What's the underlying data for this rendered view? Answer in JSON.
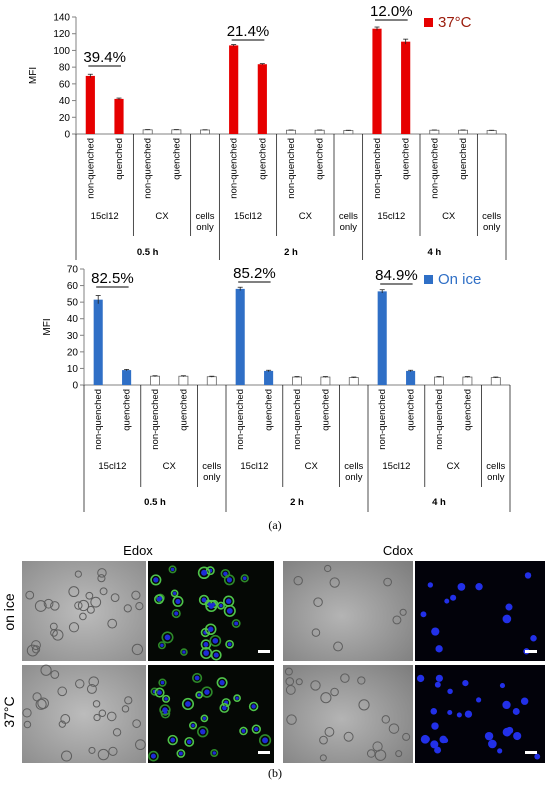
{
  "chart_data": [
    {
      "type": "bar",
      "ylabel": "MFI",
      "ylim": [
        0,
        140
      ],
      "yticks": [
        0,
        20,
        40,
        60,
        80,
        100,
        120,
        140
      ],
      "legend": {
        "label": "37°C",
        "color": "#e60000",
        "position": "top-right"
      },
      "times": [
        "0.5 h",
        "2 h",
        "4 h"
      ],
      "groups": [
        "15cl12",
        "CX",
        "cells\nonly"
      ],
      "conditions": [
        "non-quenched",
        "quenched"
      ],
      "values": [
        [
          69.5,
          42.0,
          5.0,
          5.0,
          4.8
        ],
        [
          106.0,
          83.5,
          4.5,
          4.5,
          4.2
        ],
        [
          126.0,
          110.5,
          4.5,
          4.5,
          4.2
        ]
      ],
      "errors": [
        [
          2.0,
          1.0,
          0.3,
          0.3,
          0.3
        ],
        [
          1.0,
          0.7,
          0.3,
          0.3,
          0.3
        ],
        [
          2.0,
          3.0,
          0.3,
          0.3,
          0.3
        ]
      ],
      "annotations": [
        "39.4%",
        "21.4%",
        "12.0%"
      ]
    },
    {
      "type": "bar",
      "ylabel": "MFI",
      "ylim": [
        0,
        70
      ],
      "yticks": [
        0,
        10,
        20,
        30,
        40,
        50,
        60,
        70
      ],
      "legend": {
        "label": "On ice",
        "color": "#2f6fc6",
        "position": "top-right"
      },
      "times": [
        "0.5 h",
        "2 h",
        "4 h"
      ],
      "groups": [
        "15cl12",
        "CX",
        "cells\nonly"
      ],
      "conditions": [
        "non-quenched",
        "quenched"
      ],
      "values": [
        [
          51.5,
          9.0,
          5.3,
          5.3,
          5.0
        ],
        [
          58.0,
          8.5,
          4.8,
          4.8,
          4.5
        ],
        [
          56.5,
          8.5,
          4.8,
          4.8,
          4.5
        ]
      ],
      "errors": [
        [
          2.5,
          0.4,
          0.3,
          0.3,
          0.3
        ],
        [
          1.0,
          0.4,
          0.3,
          0.3,
          0.3
        ],
        [
          1.0,
          0.4,
          0.3,
          0.3,
          0.3
        ]
      ],
      "annotations": [
        "82.5%",
        "85.2%",
        "84.9%"
      ]
    }
  ],
  "panel_a_label": "(a)",
  "panel_b_label": "(b)",
  "microscopy": {
    "columns": [
      "Edox",
      "Cdox"
    ],
    "rows": [
      "on ice",
      "37°C"
    ]
  }
}
